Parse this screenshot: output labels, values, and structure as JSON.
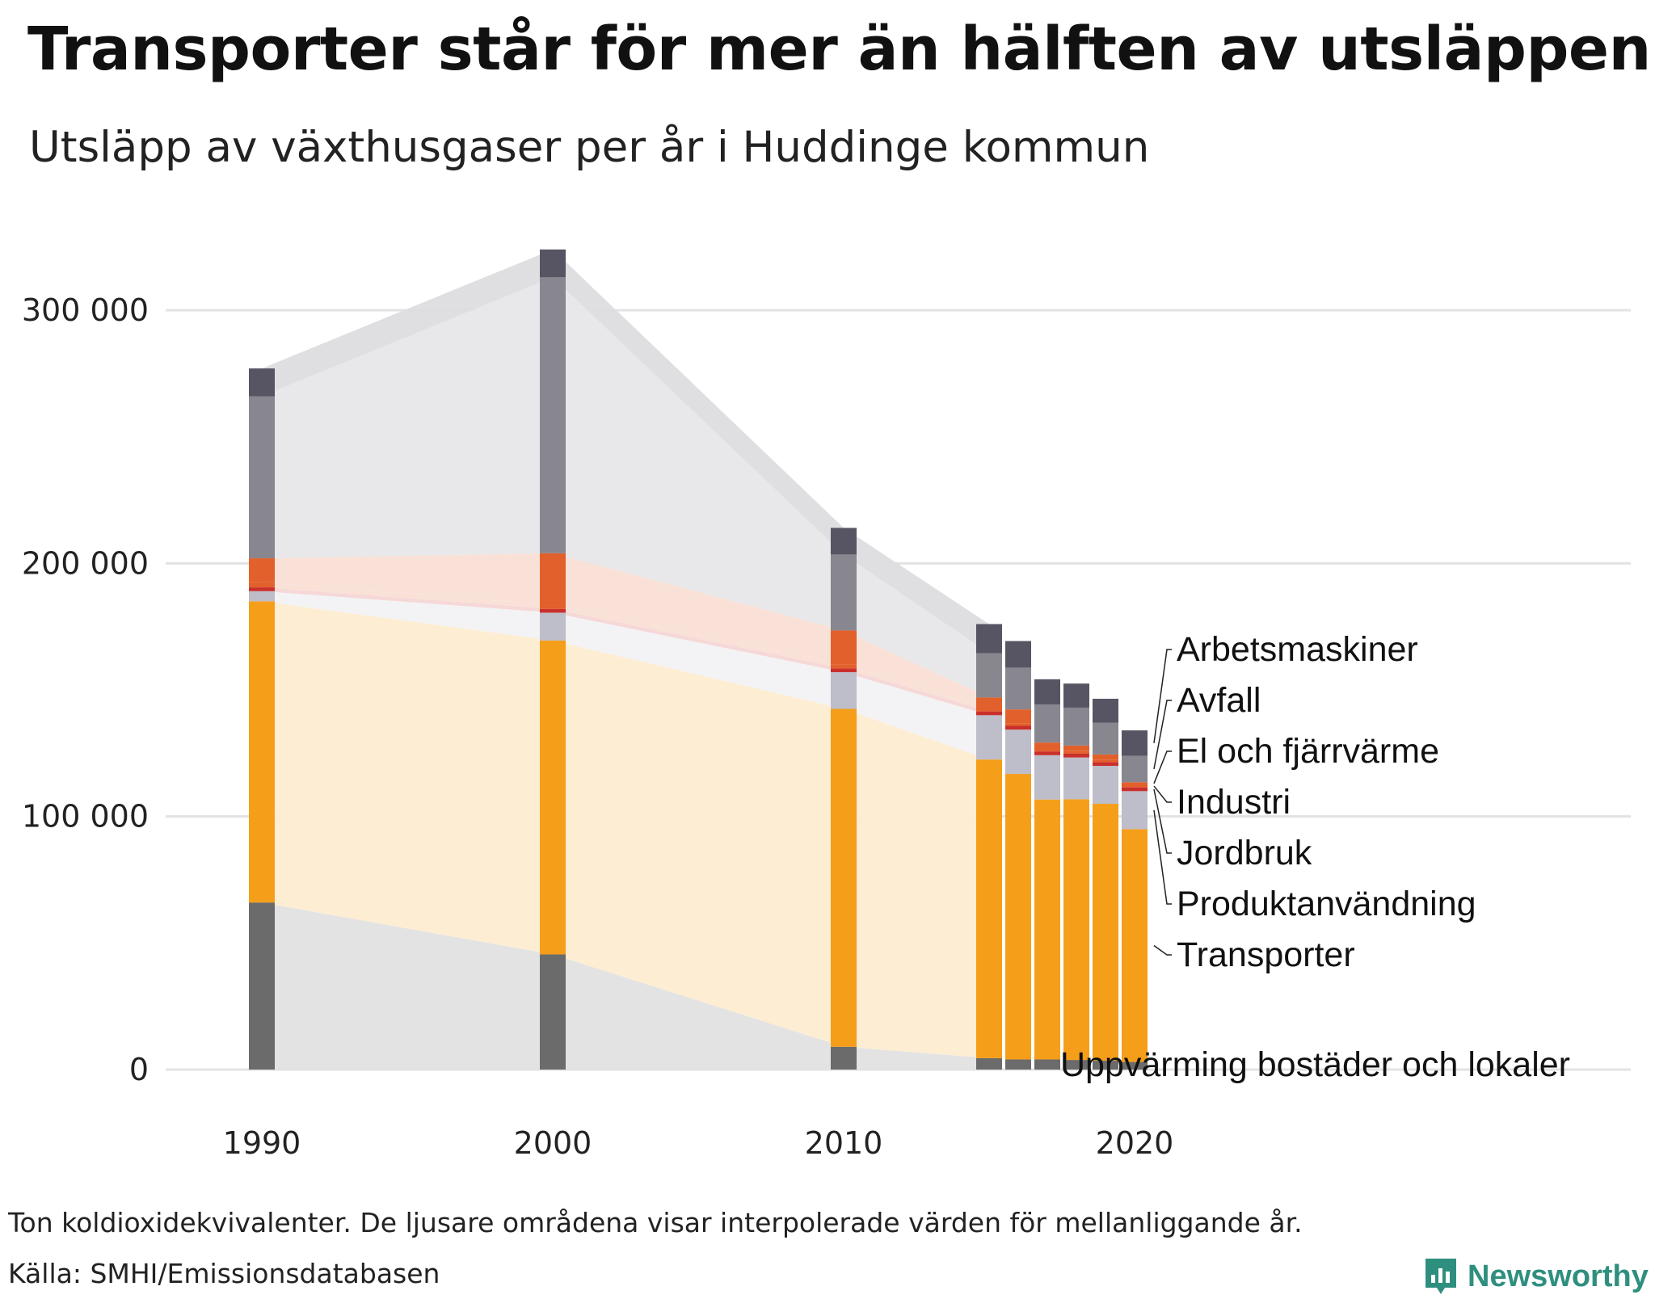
{
  "title": "Transporter står för mer än hälften av utsläppen",
  "subtitle": "Utsläpp av växthusgaser per år i Huddinge kommun",
  "note": "Ton koldioxidekvivalenter. De ljusare områdena visar interpolerade värden för mellanliggande år.",
  "source": "Källa: SMHI/Emissionsdatabasen",
  "brand": "Newsworthy",
  "colors": {
    "Uppvärming bostäder och lokaler": "#6b6b6b",
    "Transporter": "#f59e1a",
    "Produktanvändning": "#bebdca",
    "Jordbruk": "#c9302c",
    "Industri": "#e2602b",
    "El och fjärrvärme": "#e2602b",
    "Avfall": "#88878f",
    "Arbetsmaskiner": "#575463",
    "brand": "#2f8f7f"
  },
  "chart_data": {
    "type": "bar",
    "stacked": true,
    "x": [
      1990,
      2000,
      2010,
      2015,
      2016,
      2017,
      2018,
      2019,
      2020
    ],
    "x_ticks": [
      "1990",
      "2000",
      "2010",
      "2020"
    ],
    "y_ticks": [
      "0",
      "100 000",
      "200 000",
      "300 000"
    ],
    "y_tick_values": [
      0,
      100000,
      200000,
      300000
    ],
    "ylim": [
      0,
      330000
    ],
    "grid": true,
    "legend": "right, labels aligned to last bar",
    "series": [
      {
        "name": "Uppvärming bostäder och lokaler",
        "values": [
          66000,
          45500,
          9000,
          4500,
          4000,
          4000,
          3800,
          3500,
          3000
        ]
      },
      {
        "name": "Transporter",
        "values": [
          119000,
          124000,
          133500,
          118000,
          112800,
          102700,
          103000,
          101500,
          92000
        ]
      },
      {
        "name": "Produktanvändning",
        "values": [
          4000,
          11000,
          14500,
          17500,
          17500,
          17500,
          16500,
          15000,
          15000
        ]
      },
      {
        "name": "Jordbruk",
        "values": [
          1500,
          1500,
          1500,
          1500,
          1500,
          1500,
          1500,
          1500,
          1500
        ]
      },
      {
        "name": "Industri",
        "values": [
          2000,
          1500,
          1500,
          1000,
          1000,
          1000,
          1000,
          1000,
          1000
        ]
      },
      {
        "name": "El och fjärrvärme",
        "values": [
          9500,
          20500,
          13500,
          4500,
          5500,
          2500,
          2200,
          2000,
          1000
        ]
      },
      {
        "name": "Avfall",
        "values": [
          64000,
          109000,
          30000,
          17500,
          16500,
          15000,
          15000,
          12500,
          10500
        ]
      },
      {
        "name": "Arbetsmaskiner",
        "values": [
          11000,
          11000,
          10500,
          11500,
          10500,
          10000,
          9500,
          9500,
          10000
        ]
      }
    ],
    "label_order": [
      "Arbetsmaskiner",
      "Avfall",
      "El och fjärrvärme",
      "Industri",
      "Jordbruk",
      "Produktanvändning",
      "Transporter",
      "Uppvärming bostäder och lokaler"
    ]
  }
}
